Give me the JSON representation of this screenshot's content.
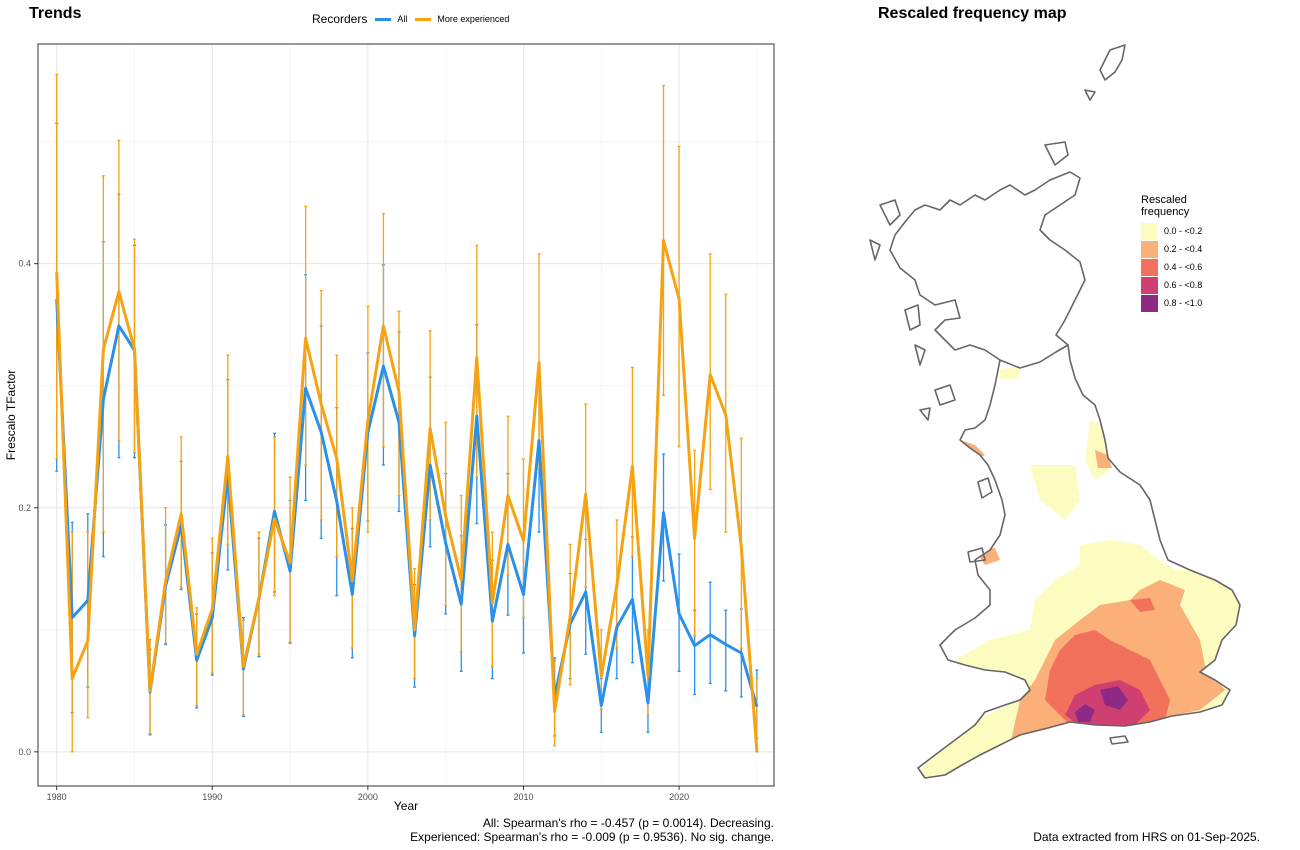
{
  "trends": {
    "title": "Trends",
    "legend_title": "Recorders",
    "legend_items": [
      {
        "label": "All",
        "color": "#2b90e8"
      },
      {
        "label": "More experienced",
        "color": "#f5a313"
      }
    ],
    "stats": {
      "all": "All: Spearman's rho = -0.457 (p = 0.0014). Decreasing.",
      "experienced": "Experienced: Spearman's rho = -0.009 (p = 0.9536). No sig. change."
    }
  },
  "chart_data": {
    "type": "line",
    "xlabel": "Year",
    "ylabel": "Frescalo TFactor",
    "xlim": [
      1978.8,
      2026.1
    ],
    "ylim": [
      -0.028,
      0.58
    ],
    "x_ticks": [
      1980,
      1990,
      2000,
      2010,
      2020
    ],
    "y_ticks": [
      0.0,
      0.2,
      0.4
    ],
    "y_tick_labels": [
      "0.0",
      "0.2",
      "0.4"
    ],
    "grid": true,
    "legend_position": "top",
    "x": [
      1980,
      1981,
      1982,
      1983,
      1984,
      1985,
      1986,
      1987,
      1988,
      1989,
      1990,
      1991,
      1992,
      1993,
      1994,
      1995,
      1996,
      1997,
      1998,
      1999,
      2000,
      2001,
      2002,
      2003,
      2004,
      2005,
      2006,
      2007,
      2008,
      2009,
      2010,
      2011,
      2012,
      2013,
      2014,
      2015,
      2016,
      2017,
      2018,
      2019,
      2020,
      2021,
      2022,
      2023,
      2024,
      2025
    ],
    "series": [
      {
        "name": "All",
        "color": "#2b90e8",
        "values": [
          0.371,
          0.11,
          0.124,
          0.289,
          0.349,
          0.329,
          0.049,
          0.136,
          0.186,
          0.075,
          0.11,
          0.227,
          0.068,
          0.126,
          0.197,
          0.148,
          0.298,
          0.262,
          0.205,
          0.129,
          0.262,
          0.316,
          0.27,
          0.095,
          0.235,
          0.171,
          0.121,
          0.275,
          0.107,
          0.17,
          0.129,
          0.255,
          0.045,
          0.105,
          0.131,
          0.038,
          0.102,
          0.125,
          0.04,
          0.196,
          0.113,
          0.087,
          0.096,
          0.088,
          0.081,
          0.037
        ],
        "lower": [
          0.23,
          0.032,
          0.053,
          0.16,
          0.241,
          0.241,
          0.014,
          0.088,
          0.133,
          0.036,
          0.063,
          0.149,
          0.029,
          0.078,
          0.131,
          0.089,
          0.206,
          0.175,
          0.128,
          0.077,
          0.189,
          0.235,
          0.197,
          0.053,
          0.168,
          0.113,
          0.066,
          0.187,
          0.06,
          0.112,
          0.081,
          0.18,
          0.013,
          0.06,
          0.08,
          0.016,
          0.06,
          0.073,
          0.016,
          0.14,
          0.066,
          0.047,
          0.056,
          0.05,
          0.045,
          0.011
        ],
        "upper": [
          0.515,
          0.188,
          0.195,
          0.418,
          0.457,
          0.415,
          0.084,
          0.186,
          0.238,
          0.113,
          0.163,
          0.305,
          0.11,
          0.175,
          0.261,
          0.206,
          0.391,
          0.349,
          0.282,
          0.183,
          0.327,
          0.399,
          0.344,
          0.137,
          0.307,
          0.228,
          0.177,
          0.35,
          0.157,
          0.228,
          0.178,
          0.31,
          0.077,
          0.146,
          0.174,
          0.06,
          0.136,
          0.176,
          0.063,
          0.244,
          0.162,
          0.116,
          0.139,
          0.116,
          0.117,
          0.067
        ]
      },
      {
        "name": "More experienced",
        "color": "#f5a313",
        "values": [
          0.393,
          0.06,
          0.091,
          0.33,
          0.377,
          0.33,
          0.05,
          0.14,
          0.195,
          0.08,
          0.117,
          0.242,
          0.07,
          0.126,
          0.191,
          0.155,
          0.339,
          0.285,
          0.24,
          0.14,
          0.272,
          0.349,
          0.295,
          0.1,
          0.265,
          0.193,
          0.141,
          0.323,
          0.122,
          0.21,
          0.173,
          0.319,
          0.033,
          0.111,
          0.211,
          0.062,
          0.136,
          0.234,
          0.062,
          0.419,
          0.371,
          0.175,
          0.309,
          0.276,
          0.168,
          0.0
        ],
        "lower": [
          0.24,
          0.0,
          0.028,
          0.18,
          0.255,
          0.245,
          0.015,
          0.089,
          0.135,
          0.038,
          0.065,
          0.17,
          0.03,
          0.08,
          0.128,
          0.09,
          0.235,
          0.19,
          0.16,
          0.085,
          0.18,
          0.25,
          0.21,
          0.06,
          0.19,
          0.12,
          0.082,
          0.225,
          0.07,
          0.145,
          0.11,
          0.232,
          0.005,
          0.055,
          0.135,
          0.035,
          0.085,
          0.16,
          0.03,
          0.292,
          0.25,
          0.095,
          0.215,
          0.18,
          0.085,
          0.0
        ],
        "upper": [
          0.555,
          0.18,
          0.18,
          0.472,
          0.501,
          0.42,
          0.092,
          0.2,
          0.258,
          0.118,
          0.175,
          0.325,
          0.108,
          0.18,
          0.258,
          0.225,
          0.447,
          0.378,
          0.325,
          0.2,
          0.365,
          0.441,
          0.361,
          0.15,
          0.345,
          0.27,
          0.21,
          0.415,
          0.18,
          0.275,
          0.24,
          0.408,
          0.075,
          0.17,
          0.285,
          0.1,
          0.19,
          0.315,
          0.1,
          0.546,
          0.496,
          0.247,
          0.408,
          0.375,
          0.257,
          0.06
        ]
      }
    ]
  },
  "map": {
    "title": "Rescaled frequency map",
    "legend_title_line1": "Rescaled",
    "legend_title_line2": "frequency",
    "legend": [
      {
        "label": "0.0 - <0.2",
        "color": "#fdfcc0"
      },
      {
        "label": "0.2 - <0.4",
        "color": "#fbb079"
      },
      {
        "label": "0.4 - <0.6",
        "color": "#f2715c"
      },
      {
        "label": "0.6 - <0.8",
        "color": "#cf4070"
      },
      {
        "label": "0.8 - <1.0",
        "color": "#8e2a85"
      }
    ],
    "outline_color": "#666666",
    "note": "Data extracted from HRS on 01-Sep-2025."
  }
}
